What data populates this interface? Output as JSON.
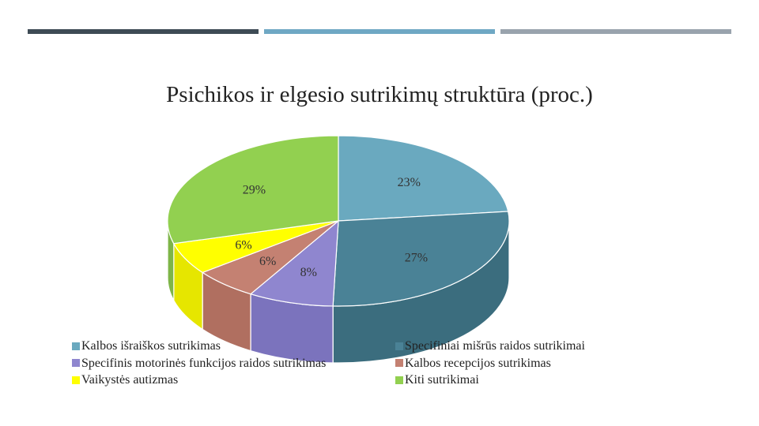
{
  "chart_data": {
    "type": "pie",
    "title": "Psichikos ir elgesio sutrikimų struktūra (proc.)",
    "three_d": true,
    "slices": [
      {
        "label": "Kalbos išraiškos sutrikimas",
        "value": 23,
        "value_label": "23%",
        "color": "#6aa9bf",
        "side_color": "#4f8799"
      },
      {
        "label": "Specifiniai mišrūs raidos sutrikimai",
        "value": 27,
        "value_label": "27%",
        "color": "#4a8296",
        "side_color": "#3b6d7e"
      },
      {
        "label": "Specifinis motorinės funkcijos raidos sutrikimas",
        "value": 8,
        "value_label": "8%",
        "color": "#8f86cf",
        "side_color": "#7b73bd"
      },
      {
        "label": "Kalbos recepcijos sutrikimas",
        "value": 6,
        "value_label": "6%",
        "color": "#c48172",
        "side_color": "#b06f60"
      },
      {
        "label": "Vaikystės autizmas",
        "value": 6,
        "value_label": "6%",
        "color": "#ffff00",
        "side_color": "#e6e600"
      },
      {
        "label": "Kiti sutrikimai",
        "value": 29,
        "value_label": "29%",
        "color": "#92d050",
        "side_color": "#7eb548"
      }
    ],
    "legend_position": "bottom"
  },
  "legend": {
    "left": [
      {
        "label": "Kalbos išraiškos sutrikimas",
        "color": "#6aa9bf"
      },
      {
        "label": "Specifinis motorinės funkcijos raidos sutrikimas",
        "color": "#8f86cf"
      },
      {
        "label": "Vaikystės autizmas",
        "color": "#ffff00"
      }
    ],
    "right": [
      {
        "label": "Specifiniai mišrūs raidos sutrikimai",
        "color": "#4a8296"
      },
      {
        "label": "Kalbos recepcijos sutrikimas",
        "color": "#c48172"
      },
      {
        "label": "Kiti sutrikimai",
        "color": "#92d050"
      }
    ]
  },
  "theme": {
    "bar_colors": [
      "#3e4b55",
      "#6fa8c4",
      "#99a3ad"
    ]
  }
}
